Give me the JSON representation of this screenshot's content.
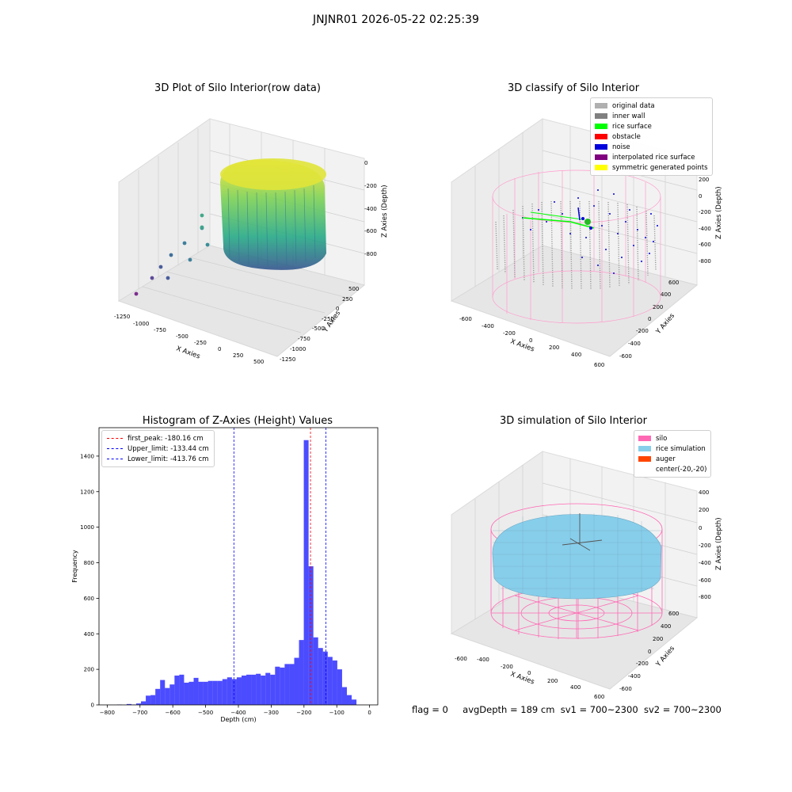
{
  "suptitle": "JNJNR01 2026-05-22 02:25:39",
  "panels": {
    "raw": {
      "title": "3D Plot of Silo Interior(row data)",
      "xlabel": "X Axies",
      "ylabel": "Y Axies",
      "zlabel": "Z Axies (Depth)",
      "xticks": [
        "-1250",
        "-1000",
        "-750",
        "-500",
        "-250",
        "0",
        "250",
        "500"
      ],
      "yticks": [
        "500",
        "250",
        "0",
        "-250",
        "-500",
        "-750",
        "-1000",
        "-1250"
      ],
      "zticks": [
        "0",
        "-200",
        "-400",
        "-600",
        "-800"
      ]
    },
    "classify": {
      "title": "3D classify of Silo Interior",
      "xlabel": "X Axies",
      "ylabel": "Y Axies",
      "zlabel": "Z Axies (Depth)",
      "xticks": [
        "-600",
        "-400",
        "-200",
        "0",
        "200",
        "400",
        "600"
      ],
      "yticks": [
        "600",
        "400",
        "200",
        "0",
        "-200",
        "-400",
        "-600"
      ],
      "zticks": [
        "200",
        "0",
        "-200",
        "-400",
        "-600",
        "-800"
      ],
      "legend": [
        {
          "label": "original data",
          "color": "#b0b0b0"
        },
        {
          "label": "inner wall",
          "color": "#808080"
        },
        {
          "label": "rice surface",
          "color": "#00ff00"
        },
        {
          "label": "obstacle",
          "color": "#ff0000"
        },
        {
          "label": "noise",
          "color": "#0000dd"
        },
        {
          "label": "interpolated rice surface",
          "color": "#800080"
        },
        {
          "label": "symmetric generated points",
          "color": "#ffff00"
        }
      ]
    },
    "simulation": {
      "title": "3D simulation of Silo Interior",
      "xlabel": "X Axies",
      "ylabel": "Y Axies",
      "zlabel": "Z Axies (Depth)",
      "xticks": [
        "-600",
        "-400",
        "-200",
        "0",
        "200",
        "400",
        "600"
      ],
      "yticks": [
        "600",
        "400",
        "200",
        "0",
        "-200",
        "-400",
        "-600"
      ],
      "zticks": [
        "400",
        "200",
        "0",
        "-200",
        "-400",
        "-600",
        "-800"
      ],
      "legend": [
        {
          "label": "silo",
          "color": "#ff69b4"
        },
        {
          "label": "rice simulation",
          "color": "#87ceeb"
        },
        {
          "label": "auger",
          "color": "#ff4500"
        },
        {
          "label": "center(-20,-20)",
          "color": ""
        }
      ]
    }
  },
  "chart_data": {
    "type": "bar",
    "title": "Histogram of Z-Axies (Height) Values",
    "xlabel": "Depth (cm)",
    "ylabel": "Frequency",
    "xlim": [
      -825,
      25
    ],
    "ylim": [
      0,
      1560
    ],
    "xticks": [
      -800,
      -700,
      -600,
      -500,
      -400,
      -300,
      -200,
      -100,
      0
    ],
    "yticks": [
      0,
      200,
      400,
      600,
      800,
      1000,
      1200,
      1400
    ],
    "bar_color": "#0000ff",
    "bins": {
      "start": -770,
      "width": 14.6,
      "values": [
        2,
        0,
        5,
        2,
        8,
        20,
        52,
        55,
        90,
        140,
        95,
        115,
        165,
        170,
        125,
        130,
        152,
        130,
        130,
        135,
        135,
        135,
        145,
        155,
        145,
        155,
        165,
        170,
        170,
        175,
        165,
        180,
        170,
        215,
        210,
        230,
        230,
        265,
        365,
        1490,
        780,
        380,
        320,
        300,
        270,
        250,
        200,
        100,
        55,
        30
      ]
    },
    "lines": [
      {
        "label": "first_peak: -180.16 cm",
        "x": -180.16,
        "color": "#ff0000"
      },
      {
        "label": "Upper_limit: -133.44 cm",
        "x": -133.44,
        "color": "#0000ff"
      },
      {
        "label": "Lower_limit: -413.76 cm",
        "x": -413.76,
        "color": "#0000ff"
      }
    ]
  },
  "footer": {
    "flag": "flag = 0",
    "avg": "avgDepth = 189 cm",
    "sv1": "sv1 = 700~2300",
    "sv2": "sv2 = 700~2300"
  }
}
